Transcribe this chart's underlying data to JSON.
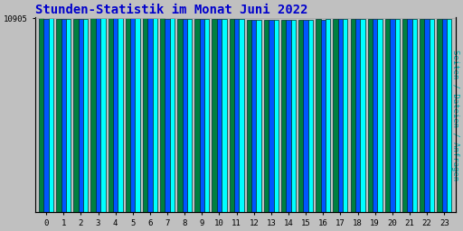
{
  "title": "Stunden-Statistik im Monat Juni 2022",
  "title_color": "#0000cc",
  "title_fontsize": 10,
  "ylabel_right": "Seiten / Dateien / Anfragen",
  "ylabel_right_color": "#00aaaa",
  "categories": [
    0,
    1,
    2,
    3,
    4,
    5,
    6,
    7,
    8,
    9,
    10,
    11,
    12,
    13,
    14,
    15,
    16,
    17,
    18,
    19,
    20,
    21,
    22,
    23
  ],
  "values_cyan": [
    10890,
    10872,
    10875,
    10898,
    10903,
    10910,
    10913,
    10893,
    10870,
    10867,
    10863,
    10847,
    10828,
    10822,
    10826,
    10830,
    10843,
    10847,
    10853,
    10848,
    10847,
    10860,
    10873,
    10877
  ],
  "values_blue": [
    10875,
    10858,
    10862,
    10885,
    10890,
    10897,
    10900,
    10880,
    10856,
    10853,
    10850,
    10834,
    10814,
    10808,
    10813,
    10817,
    10830,
    10833,
    10840,
    10835,
    10833,
    10846,
    10860,
    10862
  ],
  "values_green": [
    10883,
    10865,
    10870,
    10892,
    10897,
    10905,
    10907,
    10887,
    10863,
    10860,
    10857,
    10841,
    10821,
    10815,
    10820,
    10824,
    10837,
    10840,
    10847,
    10842,
    10840,
    10853,
    10867,
    10870
  ],
  "bar_color_cyan": "#00ffff",
  "bar_color_blue": "#0055ff",
  "bar_color_green": "#008040",
  "bar_edge_color": "#003030",
  "background_color": "#c0c0c0",
  "plot_bg_color": "#c0c0c0",
  "ymin": 0,
  "ymax": 10940,
  "ytick_value": 10905,
  "ytick_label": "10905",
  "grid_color": "#aaaaaa",
  "font_family": "monospace",
  "bar_width": 0.28
}
